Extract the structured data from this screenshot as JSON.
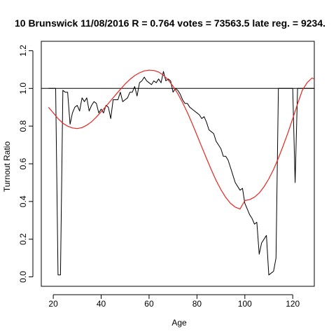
{
  "chart_data": {
    "type": "line",
    "title": "10 Brunswick 11/08/2016 R = 0.764 votes = 73563.5 late reg. = 9234.",
    "xlabel": "Age",
    "ylabel": "Turnout Ratio",
    "xlim": [
      15,
      129
    ],
    "ylim": [
      -0.05,
      1.25
    ],
    "x_ticks": [
      20,
      40,
      60,
      80,
      100,
      120
    ],
    "y_ticks": [
      0.0,
      0.2,
      0.4,
      0.6,
      0.8,
      1.0,
      1.2
    ],
    "x_tick_labels": [
      "20",
      "40",
      "60",
      "80",
      "100",
      "120"
    ],
    "y_tick_labels": [
      "0.0",
      "0.2",
      "0.4",
      "0.6",
      "0.8",
      "1.0",
      "1.2"
    ],
    "reference_line": {
      "y": 1.0,
      "color": "#000000"
    },
    "grid": false,
    "series": [
      {
        "style": "observed",
        "color": "#000000",
        "x": [
          18,
          19,
          20,
          21,
          22,
          23,
          24,
          25,
          26,
          27,
          28,
          29,
          30,
          31,
          32,
          33,
          34,
          35,
          36,
          37,
          38,
          39,
          40,
          41,
          42,
          43,
          44,
          45,
          46,
          47,
          48,
          49,
          50,
          51,
          52,
          53,
          54,
          55,
          56,
          57,
          58,
          59,
          60,
          61,
          62,
          63,
          64,
          65,
          66,
          67,
          68,
          69,
          70,
          71,
          72,
          73,
          74,
          75,
          76,
          77,
          78,
          79,
          80,
          81,
          82,
          83,
          84,
          85,
          86,
          87,
          88,
          89,
          90,
          91,
          92,
          93,
          94,
          95,
          96,
          97,
          98,
          99,
          100,
          101,
          102,
          103,
          104,
          105,
          106,
          107,
          108,
          109,
          110,
          111,
          112,
          113,
          114,
          115,
          116,
          117,
          118,
          119,
          120,
          121,
          122,
          123,
          124,
          125,
          126,
          127,
          128,
          129
        ],
        "y": [
          1.0,
          1.0,
          1.0,
          1.0,
          0.01,
          0.01,
          0.99,
          0.98,
          0.98,
          0.81,
          0.87,
          0.9,
          0.91,
          0.88,
          0.95,
          0.93,
          0.95,
          0.88,
          0.91,
          0.93,
          0.92,
          0.87,
          0.89,
          0.87,
          0.91,
          0.9,
          0.84,
          0.94,
          0.94,
          0.94,
          0.98,
          0.93,
          0.94,
          0.95,
          0.98,
          0.98,
          1.01,
          0.96,
          1.03,
          1.04,
          1.06,
          1.04,
          1.03,
          1.02,
          1.04,
          1.03,
          1.05,
          1.03,
          1.09,
          1.04,
          1.05,
          1.04,
          0.98,
          1.0,
          0.99,
          0.97,
          0.94,
          0.92,
          0.92,
          0.9,
          0.89,
          0.88,
          0.87,
          0.86,
          0.84,
          0.85,
          0.82,
          0.78,
          0.77,
          0.76,
          0.72,
          0.7,
          0.68,
          0.64,
          0.64,
          0.62,
          0.58,
          0.54,
          0.5,
          0.48,
          0.46,
          0.47,
          0.39,
          0.36,
          0.33,
          0.31,
          0.28,
          0.29,
          0.12,
          0.18,
          0.2,
          0.22,
          0.01,
          0.02,
          0.03,
          0.1,
          1.0,
          1.0,
          1.0,
          1.0,
          1.0,
          1.0,
          1.0,
          0.5,
          1.0,
          1.0,
          1.0,
          1.0,
          1.0,
          1.0,
          1.0,
          1.0
        ]
      },
      {
        "style": "fitted",
        "color": "#e8251f",
        "x": [
          18,
          20,
          22,
          24,
          26,
          28,
          30,
          32,
          34,
          36,
          38,
          40,
          42,
          44,
          46,
          48,
          50,
          52,
          54,
          56,
          58,
          60,
          62,
          64,
          66,
          68,
          70,
          72,
          74,
          76,
          78,
          80,
          82,
          84,
          86,
          88,
          90,
          92,
          94,
          96,
          98,
          100,
          102,
          104,
          106,
          108,
          110,
          112,
          114,
          116,
          118,
          120,
          122,
          124,
          126,
          128,
          129
        ],
        "y": [
          0.9,
          0.87,
          0.84,
          0.815,
          0.8,
          0.79,
          0.787,
          0.792,
          0.805,
          0.823,
          0.848,
          0.876,
          0.905,
          0.935,
          0.965,
          0.995,
          1.023,
          1.048,
          1.068,
          1.083,
          1.093,
          1.097,
          1.095,
          1.087,
          1.07,
          1.045,
          1.012,
          0.972,
          0.925,
          0.872,
          0.814,
          0.752,
          0.69,
          0.628,
          0.568,
          0.512,
          0.463,
          0.422,
          0.39,
          0.37,
          0.36,
          0.405,
          0.41,
          0.423,
          0.445,
          0.478,
          0.52,
          0.57,
          0.63,
          0.695,
          0.765,
          0.84,
          0.918,
          0.99,
          1.03,
          1.055,
          1.05
        ]
      }
    ]
  }
}
